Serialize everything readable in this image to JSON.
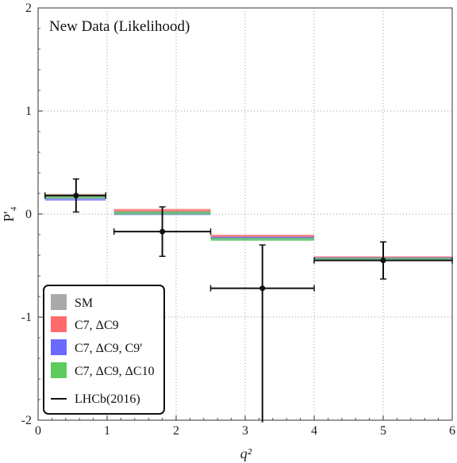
{
  "chart_data": {
    "type": "scatter",
    "title": "New Data (Likelihood)",
    "xlabel": "q²",
    "ylabel": "P'₄",
    "xlim": [
      0,
      6
    ],
    "ylim": [
      -2,
      2
    ],
    "xticks": [
      "0",
      "1",
      "2",
      "3",
      "4",
      "5",
      "6"
    ],
    "yticks": [
      "-2",
      "-1",
      "0",
      "1",
      "2"
    ],
    "grid": true,
    "legend_position": "bottom-left",
    "bins": [
      {
        "x0": 0.1,
        "x1": 0.98
      },
      {
        "x0": 1.1,
        "x1": 2.5
      },
      {
        "x0": 2.5,
        "x1": 4.0
      },
      {
        "x0": 4.0,
        "x1": 6.0
      }
    ],
    "band_series": [
      {
        "name": "SM",
        "color": "#a9a9a9",
        "bands": [
          [
            0.165,
            0.195
          ],
          [
            0.01,
            0.04
          ],
          [
            -0.24,
            -0.21
          ],
          [
            -0.435,
            -0.415
          ]
        ]
      },
      {
        "name": "C7, ΔC9",
        "color": "#ff6b6b",
        "bands": [
          [
            0.165,
            0.19
          ],
          [
            0.02,
            0.05
          ],
          [
            -0.23,
            -0.2
          ],
          [
            -0.43,
            -0.41
          ]
        ]
      },
      {
        "name": "C7, ΔC9, C9'",
        "color": "#6a6aff",
        "bands": [
          [
            0.13,
            0.16
          ],
          [
            -0.01,
            0.02
          ],
          [
            -0.25,
            -0.22
          ],
          [
            -0.44,
            -0.42
          ]
        ]
      },
      {
        "name": "C7, ΔC9, ΔC10",
        "color": "#5dcc5d",
        "bands": [
          [
            0.15,
            0.18
          ],
          [
            -0.005,
            0.025
          ],
          [
            -0.26,
            -0.23
          ],
          [
            -0.445,
            -0.425
          ]
        ]
      }
    ],
    "series": [
      {
        "name": "LHCb(2016)",
        "points": [
          {
            "x": 0.55,
            "y": 0.18,
            "xerr": [
              0.45,
              0.43
            ],
            "yerr": [
              0.16,
              0.16
            ]
          },
          {
            "x": 1.8,
            "y": -0.17,
            "xerr": [
              0.7,
              0.7
            ],
            "yerr": [
              0.24,
              0.24
            ]
          },
          {
            "x": 3.25,
            "y": -0.72,
            "xerr": [
              0.75,
              0.75
            ],
            "yerr": [
              1.3,
              0.42
            ]
          },
          {
            "x": 5.0,
            "y": -0.45,
            "xerr": [
              1.0,
              1.0
            ],
            "yerr": [
              0.18,
              0.18
            ]
          }
        ]
      }
    ]
  },
  "legend": {
    "items": [
      {
        "label": "SM",
        "color": "#a9a9a9"
      },
      {
        "label": "C7, ΔC9",
        "color": "#ff6b6b"
      },
      {
        "label": "C7, ΔC9, C9'",
        "color": "#6a6aff"
      },
      {
        "label": "C7, ΔC9, ΔC10",
        "color": "#5dcc5d"
      },
      {
        "label": "LHCb(2016)",
        "color": "#111111"
      }
    ]
  }
}
